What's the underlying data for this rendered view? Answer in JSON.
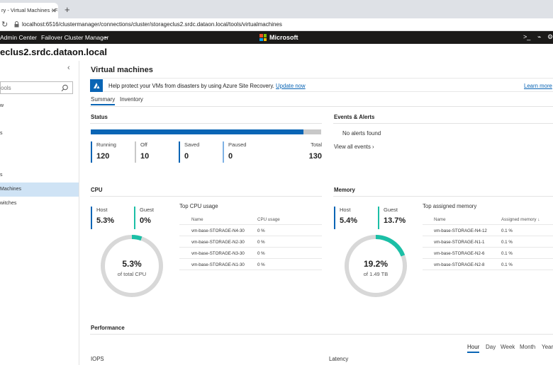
{
  "browser": {
    "tab_title": "ry - Virtual Machines - Fa",
    "url": "localhost:6516/clustermanager/connections/cluster/storageclus2.srdc.dataon.local/tools/virtualmachines"
  },
  "header": {
    "app_name": "Admin Center",
    "tool_name": "Failover Cluster Manager",
    "brand": "Microsoft"
  },
  "cluster_title": "eclus2.srdc.dataon.local",
  "sidebar": {
    "search_placeholder": "ools",
    "items": [
      "w",
      "s",
      "s",
      "Machines",
      "witches"
    ],
    "active_item": "Machines"
  },
  "main": {
    "title": "Virtual machines",
    "banner": {
      "text": "Help protect your VMs from disasters by using Azure Site Recovery.",
      "link": "Update now",
      "learn_more": "Learn more"
    },
    "tabs": [
      "Summary",
      "Inventory"
    ]
  },
  "status": {
    "title": "Status",
    "running_fraction": 0.923,
    "stats": [
      {
        "label": "Running",
        "value": "120"
      },
      {
        "label": "Off",
        "value": "10"
      },
      {
        "label": "Saved",
        "value": "0"
      },
      {
        "label": "Paused",
        "value": "0"
      },
      {
        "label": "Total",
        "value": "130"
      }
    ]
  },
  "events": {
    "title": "Events & Alerts",
    "no_alerts": "No alerts found",
    "view_all": "View all events"
  },
  "cpu": {
    "title": "CPU",
    "host_label": "Host",
    "host_value": "5.3%",
    "guest_label": "Guest",
    "guest_value": "0%",
    "donut_value": "5.3%",
    "donut_fraction": 0.053,
    "donut_caption": "of total CPU",
    "top_title": "Top CPU usage",
    "col_name": "Name",
    "col_value": "CPU usage",
    "rows": [
      {
        "name": "vm-base-STORAGE-N4-30",
        "value": "0 %"
      },
      {
        "name": "vm-base-STORAGE-N2-30",
        "value": "0 %"
      },
      {
        "name": "vm-base-STORAGE-N3-30",
        "value": "0 %"
      },
      {
        "name": "vm-base-STORAGE-N1-30",
        "value": "0 %"
      }
    ]
  },
  "memory": {
    "title": "Memory",
    "host_label": "Host",
    "host_value": "5.4%",
    "guest_label": "Guest",
    "guest_value": "13.7%",
    "donut_value": "19.2%",
    "donut_fraction": 0.192,
    "donut_caption": "of 1.49 TB",
    "top_title": "Top assigned memory",
    "col_name": "Name",
    "col_value": "Assigned memory ↓",
    "rows": [
      {
        "name": "vm-base-STORAGE-N4-12",
        "value": "0.1 %"
      },
      {
        "name": "vm-base-STORAGE-N1-1",
        "value": "0.1 %"
      },
      {
        "name": "vm-base-STORAGE-N2-6",
        "value": "0.1 %"
      },
      {
        "name": "vm-base-STORAGE-N2-8",
        "value": "0.1 %"
      }
    ]
  },
  "performance": {
    "title": "Performance",
    "ranges": [
      "Hour",
      "Day",
      "Week",
      "Month",
      "Year"
    ],
    "active_range": "Hour",
    "iops_label": "IOPS",
    "latency_label": "Latency"
  },
  "colors": {
    "accent": "#0a65b5",
    "teal": "#1bbfa6",
    "header_bg": "#1b1a19",
    "status_grey": "#c8c8c8"
  }
}
